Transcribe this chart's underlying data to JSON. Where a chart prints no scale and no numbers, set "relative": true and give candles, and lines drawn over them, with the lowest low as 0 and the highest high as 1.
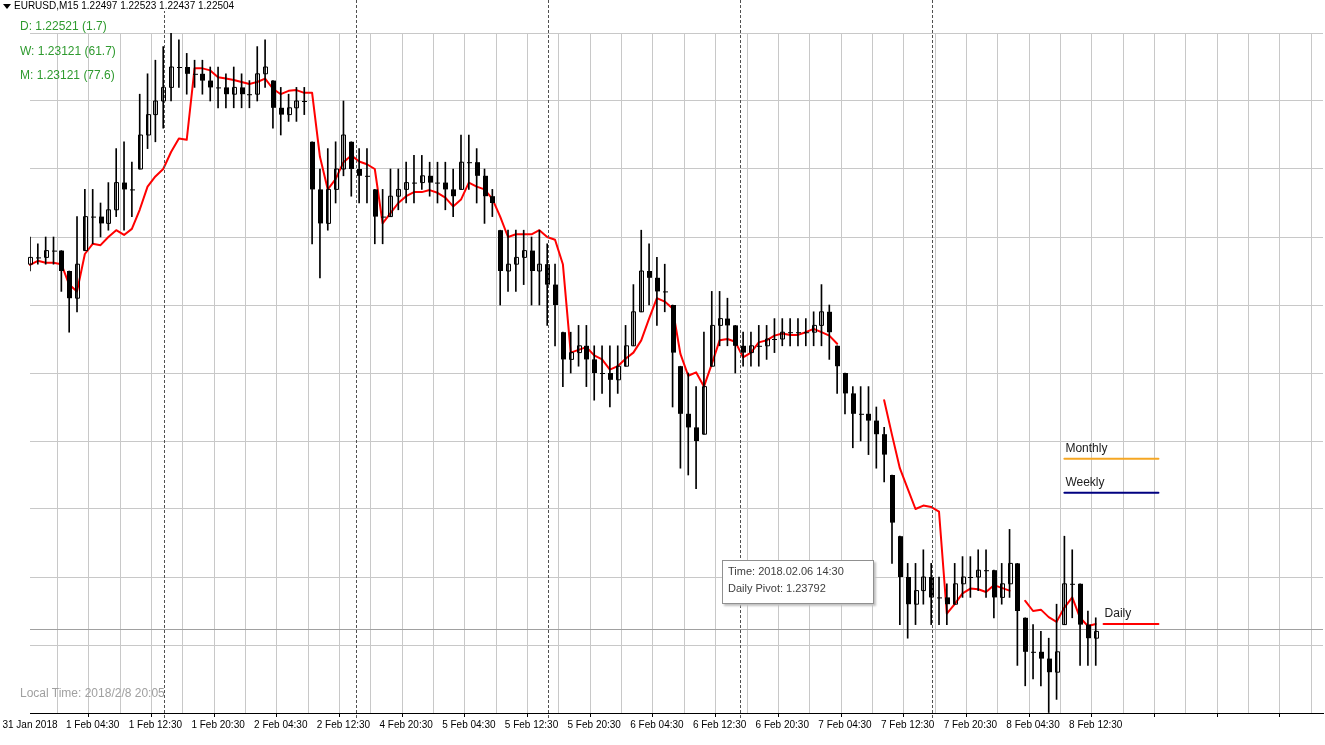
{
  "chart_data": {
    "type": "candlestick",
    "title": "EURUSD,M15  1.22497 1.22523 1.22437 1.22504",
    "relative": true,
    "color": "#000000",
    "grid": true,
    "annotations": [
      "D:  1.22521 (1.7)",
      "W:  1.23121 (61.7)",
      "M:  1.23121 (77.6)",
      "Local Time: 2018/2/8 20:05",
      "Time: 2018.02.06 14:30",
      "Daily Pivot: 1.23792"
    ],
    "categories": [
      "31 Jan 2018",
      null,
      null,
      null,
      null,
      null,
      null,
      null,
      "1 Feb 04:30",
      null,
      null,
      null,
      null,
      null,
      null,
      null,
      "1 Feb 12:30",
      null,
      null,
      null,
      null,
      null,
      null,
      null,
      "1 Feb 20:30",
      null,
      null,
      null,
      null,
      null,
      null,
      null,
      "2 Feb 04:30",
      null,
      null,
      null,
      null,
      null,
      null,
      null,
      "2 Feb 12:30",
      null,
      null,
      null,
      null,
      null,
      null,
      null,
      "4 Feb 20:30",
      null,
      null,
      null,
      null,
      null,
      null,
      null,
      "5 Feb 04:30",
      null,
      null,
      null,
      null,
      null,
      null,
      null,
      "5 Feb 12:30",
      null,
      null,
      null,
      null,
      null,
      null,
      null,
      "5 Feb 20:30",
      null,
      null,
      null,
      null,
      null,
      null,
      null,
      "6 Feb 04:30",
      null,
      null,
      null,
      null,
      null,
      null,
      null,
      "6 Feb 12:30",
      null,
      null,
      null,
      null,
      null,
      null,
      null,
      "6 Feb 20:30",
      null,
      null,
      null,
      null,
      null,
      null,
      null,
      "7 Feb 04:30",
      null,
      null,
      null,
      null,
      null,
      null,
      null,
      "7 Feb 12:30",
      null,
      null,
      null,
      null,
      null,
      null,
      null,
      "7 Feb 20:30",
      null,
      null,
      null,
      null,
      null,
      null,
      null,
      "8 Feb 04:30",
      null,
      null,
      null,
      null,
      null,
      null,
      null,
      "8 Feb 12:30",
      null,
      null,
      null,
      null,
      null,
      null,
      null,
      null,
      null,
      null,
      null,
      null,
      null,
      null,
      null,
      null,
      null,
      null,
      null,
      null,
      null,
      null,
      null,
      null,
      null,
      null,
      null,
      null,
      null
    ],
    "ohlc": [
      [
        0.66,
        0.7,
        0.65,
        0.67
      ],
      [
        0.67,
        0.69,
        0.66,
        0.67
      ],
      [
        0.67,
        0.7,
        0.66,
        0.68
      ],
      [
        0.68,
        0.7,
        0.66,
        0.68
      ],
      [
        0.68,
        0.68,
        0.62,
        0.65
      ],
      [
        0.65,
        0.65,
        0.56,
        0.61
      ],
      [
        0.61,
        0.73,
        0.59,
        0.66
      ],
      [
        0.68,
        0.77,
        0.68,
        0.73
      ],
      [
        0.73,
        0.77,
        0.69,
        0.73
      ],
      [
        0.73,
        0.75,
        0.7,
        0.72
      ],
      [
        0.72,
        0.78,
        0.71,
        0.74
      ],
      [
        0.74,
        0.83,
        0.73,
        0.78
      ],
      [
        0.78,
        0.84,
        0.71,
        0.77
      ],
      [
        0.77,
        0.81,
        0.73,
        0.77
      ],
      [
        0.8,
        0.91,
        0.8,
        0.85
      ],
      [
        0.85,
        0.94,
        0.83,
        0.88
      ],
      [
        0.88,
        0.96,
        0.84,
        0.9
      ],
      [
        0.9,
        0.98,
        0.86,
        0.92
      ],
      [
        0.92,
        1.0,
        0.9,
        0.95
      ],
      [
        0.95,
        0.99,
        0.92,
        0.95
      ],
      [
        0.95,
        0.97,
        0.91,
        0.94
      ],
      [
        0.94,
        0.96,
        0.92,
        0.94
      ],
      [
        0.94,
        0.96,
        0.91,
        0.93
      ],
      [
        0.93,
        0.95,
        0.9,
        0.92
      ],
      [
        0.92,
        0.95,
        0.89,
        0.92
      ],
      [
        0.92,
        0.94,
        0.89,
        0.91
      ],
      [
        0.91,
        0.95,
        0.89,
        0.92
      ],
      [
        0.92,
        0.94,
        0.89,
        0.91
      ],
      [
        0.91,
        0.93,
        0.89,
        0.91
      ],
      [
        0.91,
        0.98,
        0.9,
        0.94
      ],
      [
        0.94,
        0.99,
        0.92,
        0.95
      ],
      [
        0.93,
        0.93,
        0.86,
        0.89
      ],
      [
        0.89,
        0.92,
        0.85,
        0.88
      ],
      [
        0.88,
        0.91,
        0.87,
        0.89
      ],
      [
        0.89,
        0.92,
        0.87,
        0.9
      ],
      [
        0.9,
        0.92,
        0.88,
        0.9
      ],
      [
        0.84,
        0.84,
        0.69,
        0.77
      ],
      [
        0.77,
        0.8,
        0.64,
        0.72
      ],
      [
        0.72,
        0.83,
        0.71,
        0.77
      ],
      [
        0.77,
        0.84,
        0.75,
        0.8
      ],
      [
        0.8,
        0.9,
        0.79,
        0.85
      ],
      [
        0.84,
        0.84,
        0.76,
        0.8
      ],
      [
        0.8,
        0.83,
        0.75,
        0.79
      ],
      [
        0.79,
        0.83,
        0.75,
        0.79
      ],
      [
        0.77,
        0.77,
        0.69,
        0.73
      ],
      [
        0.73,
        0.77,
        0.69,
        0.73
      ],
      [
        0.73,
        0.8,
        0.73,
        0.76
      ],
      [
        0.76,
        0.8,
        0.74,
        0.77
      ],
      [
        0.77,
        0.81,
        0.75,
        0.78
      ],
      [
        0.78,
        0.82,
        0.75,
        0.78
      ],
      [
        0.78,
        0.82,
        0.77,
        0.79
      ],
      [
        0.79,
        0.81,
        0.76,
        0.78
      ],
      [
        0.78,
        0.81,
        0.75,
        0.78
      ],
      [
        0.78,
        0.81,
        0.74,
        0.77
      ],
      [
        0.77,
        0.8,
        0.73,
        0.76
      ],
      [
        0.77,
        0.85,
        0.77,
        0.81
      ],
      [
        0.81,
        0.85,
        0.77,
        0.81
      ],
      [
        0.81,
        0.83,
        0.75,
        0.79
      ],
      [
        0.79,
        0.8,
        0.72,
        0.76
      ],
      [
        0.76,
        0.77,
        0.73,
        0.75
      ],
      [
        0.71,
        0.71,
        0.6,
        0.65
      ],
      [
        0.65,
        0.71,
        0.62,
        0.66
      ],
      [
        0.66,
        0.71,
        0.62,
        0.67
      ],
      [
        0.67,
        0.71,
        0.63,
        0.68
      ],
      [
        0.68,
        0.7,
        0.6,
        0.65
      ],
      [
        0.65,
        0.71,
        0.6,
        0.66
      ],
      [
        0.66,
        0.69,
        0.57,
        0.63
      ],
      [
        0.63,
        0.66,
        0.54,
        0.6
      ],
      [
        0.56,
        0.56,
        0.48,
        0.52
      ],
      [
        0.52,
        0.56,
        0.5,
        0.53
      ],
      [
        0.53,
        0.57,
        0.51,
        0.54
      ],
      [
        0.54,
        0.57,
        0.48,
        0.52
      ],
      [
        0.52,
        0.54,
        0.46,
        0.5
      ],
      [
        0.5,
        0.54,
        0.47,
        0.5
      ],
      [
        0.5,
        0.54,
        0.45,
        0.49
      ],
      [
        0.49,
        0.54,
        0.47,
        0.51
      ],
      [
        0.51,
        0.57,
        0.51,
        0.54
      ],
      [
        0.54,
        0.63,
        0.54,
        0.59
      ],
      [
        0.59,
        0.71,
        0.59,
        0.65
      ],
      [
        0.65,
        0.69,
        0.6,
        0.64
      ],
      [
        0.64,
        0.67,
        0.57,
        0.62
      ],
      [
        0.62,
        0.66,
        0.59,
        0.62
      ],
      [
        0.6,
        0.6,
        0.45,
        0.53
      ],
      [
        0.51,
        0.51,
        0.36,
        0.44
      ],
      [
        0.44,
        0.5,
        0.35,
        0.42
      ],
      [
        0.42,
        0.48,
        0.33,
        0.4
      ],
      [
        0.41,
        0.56,
        0.41,
        0.48
      ],
      [
        0.51,
        0.62,
        0.51,
        0.57
      ],
      [
        0.57,
        0.62,
        0.54,
        0.58
      ],
      [
        0.58,
        0.61,
        0.54,
        0.57
      ],
      [
        0.57,
        0.57,
        0.5,
        0.54
      ],
      [
        0.54,
        0.56,
        0.51,
        0.53
      ],
      [
        0.53,
        0.56,
        0.51,
        0.54
      ],
      [
        0.54,
        0.57,
        0.51,
        0.54
      ],
      [
        0.54,
        0.57,
        0.52,
        0.55
      ],
      [
        0.55,
        0.58,
        0.53,
        0.55
      ],
      [
        0.55,
        0.58,
        0.54,
        0.56
      ],
      [
        0.56,
        0.58,
        0.54,
        0.56
      ],
      [
        0.56,
        0.58,
        0.54,
        0.56
      ],
      [
        0.56,
        0.58,
        0.54,
        0.56
      ],
      [
        0.56,
        0.59,
        0.54,
        0.57
      ],
      [
        0.57,
        0.63,
        0.54,
        0.59
      ],
      [
        0.59,
        0.6,
        0.52,
        0.56
      ],
      [
        0.54,
        0.54,
        0.47,
        0.51
      ],
      [
        0.5,
        0.5,
        0.44,
        0.47
      ],
      [
        0.47,
        0.48,
        0.39,
        0.44
      ],
      [
        0.44,
        0.48,
        0.4,
        0.44
      ],
      [
        0.44,
        0.48,
        0.38,
        0.43
      ],
      [
        0.43,
        0.45,
        0.36,
        0.41
      ],
      [
        0.41,
        0.42,
        0.34,
        0.38
      ],
      [
        0.35,
        0.35,
        0.22,
        0.28
      ],
      [
        0.26,
        0.26,
        0.13,
        0.2
      ],
      [
        0.2,
        0.22,
        0.11,
        0.16
      ],
      [
        0.16,
        0.22,
        0.13,
        0.18
      ],
      [
        0.18,
        0.24,
        0.16,
        0.2
      ],
      [
        0.2,
        0.22,
        0.13,
        0.17
      ],
      [
        0.17,
        0.2,
        0.13,
        0.17
      ],
      [
        0.17,
        0.19,
        0.13,
        0.16
      ],
      [
        0.16,
        0.22,
        0.16,
        0.19
      ],
      [
        0.19,
        0.23,
        0.17,
        0.2
      ],
      [
        0.2,
        0.23,
        0.17,
        0.2
      ],
      [
        0.2,
        0.24,
        0.18,
        0.21
      ],
      [
        0.21,
        0.24,
        0.17,
        0.21
      ],
      [
        0.21,
        0.21,
        0.14,
        0.17
      ],
      [
        0.17,
        0.22,
        0.16,
        0.19
      ],
      [
        0.19,
        0.27,
        0.17,
        0.22
      ],
      [
        0.22,
        0.22,
        0.07,
        0.15
      ],
      [
        0.14,
        0.14,
        0.04,
        0.09
      ],
      [
        0.09,
        0.13,
        0.05,
        0.09
      ],
      [
        0.09,
        0.12,
        0.04,
        0.08
      ],
      [
        0.08,
        0.11,
        0.0,
        0.06
      ],
      [
        0.06,
        0.16,
        0.02,
        0.09
      ],
      [
        0.13,
        0.26,
        0.13,
        0.19
      ],
      [
        0.19,
        0.24,
        0.14,
        0.19
      ],
      [
        0.19,
        0.19,
        0.07,
        0.13
      ],
      [
        0.13,
        0.15,
        0.07,
        0.11
      ],
      [
        0.11,
        0.14,
        0.07,
        0.12
      ],
      null,
      null,
      null,
      null,
      null,
      null,
      null,
      null,
      null,
      null,
      null,
      null,
      null,
      null,
      null,
      null,
      null,
      null,
      null,
      null,
      null,
      null,
      null,
      null,
      null,
      null,
      null,
      null,
      null
    ],
    "series": [
      {
        "type": "line",
        "color": "#ff0000",
        "values": [
          0.659,
          0.665,
          0.662,
          0.662,
          0.66,
          0.63,
          0.62,
          0.675,
          0.69,
          0.688,
          0.7,
          0.71,
          0.703,
          0.712,
          0.74,
          0.774,
          0.789,
          0.8,
          0.825,
          0.845,
          0.843,
          0.948,
          0.948,
          0.945,
          0.935,
          0.933,
          0.931,
          0.928,
          0.925,
          0.928,
          0.933,
          0.918,
          0.91,
          0.915,
          0.916,
          0.912,
          0.912,
          0.818,
          0.77,
          0.785,
          0.81,
          0.82,
          0.811,
          0.807,
          0.8,
          0.72,
          0.735,
          0.75,
          0.76,
          0.766,
          0.766,
          0.769,
          0.765,
          0.758,
          0.745,
          0.755,
          0.78,
          0.774,
          0.77,
          0.756,
          0.73,
          0.7,
          0.704,
          0.704,
          0.704,
          0.71,
          0.7,
          0.696,
          0.66,
          0.53,
          0.534,
          0.538,
          0.526,
          0.52,
          0.505,
          0.51,
          0.521,
          0.53,
          0.548,
          0.58,
          0.61,
          0.605,
          0.595,
          0.528,
          0.496,
          0.501,
          0.48,
          0.513,
          0.548,
          0.55,
          0.546,
          0.523,
          0.53,
          0.545,
          0.548,
          0.555,
          0.558,
          0.556,
          0.556,
          0.56,
          0.565,
          0.56,
          0.555,
          0.543,
          null,
          null,
          null,
          null,
          null,
          0.46,
          0.409,
          0.36,
          0.33,
          0.3,
          0.305,
          0.303,
          0.296,
          0.146,
          0.16,
          0.176,
          0.183,
          0.182,
          0.178,
          0.188,
          0.184,
          0.18,
          null,
          0.165,
          0.15,
          0.152,
          0.141,
          0.134,
          0.155,
          0.17,
          0.14,
          0.128,
          0.131,
          null,
          null,
          null,
          null,
          null,
          null,
          null,
          null,
          null,
          null,
          null,
          null,
          null,
          null,
          null,
          null,
          null,
          null,
          null,
          null,
          null,
          null,
          null,
          null,
          null,
          null,
          null,
          null,
          null
        ]
      },
      {
        "type": "line",
        "name": "Monthly",
        "color": "#f5a623",
        "values": [
          null,
          null,
          null,
          null,
          null,
          null,
          null,
          null,
          null,
          null,
          null,
          null,
          null,
          null,
          null,
          null,
          null,
          null,
          null,
          null,
          null,
          null,
          null,
          null,
          null,
          null,
          null,
          null,
          null,
          null,
          null,
          null,
          null,
          null,
          null,
          null,
          null,
          null,
          null,
          null,
          null,
          null,
          null,
          null,
          null,
          null,
          null,
          null,
          null,
          null,
          null,
          null,
          null,
          null,
          null,
          null,
          null,
          null,
          null,
          null,
          null,
          null,
          null,
          null,
          null,
          null,
          null,
          null,
          null,
          null,
          null,
          null,
          null,
          null,
          null,
          null,
          null,
          null,
          null,
          null,
          null,
          null,
          null,
          null,
          null,
          null,
          null,
          null,
          null,
          null,
          null,
          null,
          null,
          null,
          null,
          null,
          null,
          null,
          null,
          null,
          null,
          null,
          null,
          null,
          null,
          null,
          null,
          null,
          null,
          null,
          null,
          null,
          null,
          null,
          null,
          null,
          null,
          null,
          null,
          null,
          null,
          null,
          null,
          null,
          null,
          null,
          null,
          null,
          null,
          null,
          null,
          null,
          0.374,
          0.374,
          0.374,
          0.374,
          0.374,
          0.374,
          0.374,
          0.374,
          0.374,
          0.374,
          0.374,
          0.374,
          0.374,
          null,
          null,
          null,
          null,
          null,
          null,
          null,
          null,
          null,
          null,
          null,
          null,
          null,
          null,
          null,
          null,
          null,
          null,
          null,
          null,
          null
        ]
      },
      {
        "type": "line",
        "name": "Weekly",
        "color": "#000080",
        "values": [
          null,
          null,
          null,
          null,
          null,
          null,
          null,
          null,
          null,
          null,
          null,
          null,
          null,
          null,
          null,
          null,
          null,
          null,
          null,
          null,
          null,
          null,
          null,
          null,
          null,
          null,
          null,
          null,
          null,
          null,
          null,
          null,
          null,
          null,
          null,
          null,
          null,
          null,
          null,
          null,
          null,
          null,
          null,
          null,
          null,
          null,
          null,
          null,
          null,
          null,
          null,
          null,
          null,
          null,
          null,
          null,
          null,
          null,
          null,
          null,
          null,
          null,
          null,
          null,
          null,
          null,
          null,
          null,
          null,
          null,
          null,
          null,
          null,
          null,
          null,
          null,
          null,
          null,
          null,
          null,
          null,
          null,
          null,
          null,
          null,
          null,
          null,
          null,
          null,
          null,
          null,
          null,
          null,
          null,
          null,
          null,
          null,
          null,
          null,
          null,
          null,
          null,
          null,
          null,
          null,
          null,
          null,
          null,
          null,
          null,
          null,
          null,
          null,
          null,
          null,
          null,
          null,
          null,
          null,
          null,
          null,
          null,
          null,
          null,
          null,
          null,
          null,
          null,
          null,
          null,
          null,
          null,
          0.324,
          0.324,
          0.324,
          0.324,
          0.324,
          0.324,
          0.324,
          0.324,
          0.324,
          0.324,
          0.324,
          0.324,
          0.324,
          null,
          null,
          null,
          null,
          null,
          null,
          null,
          null,
          null,
          null,
          null,
          null,
          null,
          null,
          null,
          null,
          null,
          null,
          null,
          null,
          null
        ]
      },
      {
        "type": "line",
        "name": "Daily",
        "color": "#ff0000",
        "values": [
          null,
          null,
          null,
          null,
          null,
          null,
          null,
          null,
          null,
          null,
          null,
          null,
          null,
          null,
          null,
          null,
          null,
          null,
          null,
          null,
          null,
          null,
          null,
          null,
          null,
          null,
          null,
          null,
          null,
          null,
          null,
          null,
          null,
          null,
          null,
          null,
          null,
          null,
          null,
          null,
          null,
          null,
          null,
          null,
          null,
          null,
          null,
          null,
          null,
          null,
          null,
          null,
          null,
          null,
          null,
          null,
          null,
          null,
          null,
          null,
          null,
          null,
          null,
          null,
          null,
          null,
          null,
          null,
          null,
          null,
          null,
          null,
          null,
          null,
          null,
          null,
          null,
          null,
          null,
          null,
          null,
          null,
          null,
          null,
          null,
          null,
          null,
          null,
          null,
          null,
          null,
          null,
          null,
          null,
          null,
          null,
          null,
          null,
          null,
          null,
          null,
          null,
          null,
          null,
          null,
          null,
          null,
          null,
          null,
          null,
          null,
          null,
          null,
          null,
          null,
          null,
          null,
          null,
          null,
          null,
          null,
          null,
          null,
          null,
          null,
          null,
          null,
          null,
          null,
          null,
          null,
          null,
          null,
          null,
          null,
          null,
          null,
          0.131,
          0.131,
          0.131,
          0.131,
          0.131,
          0.131,
          0.131,
          0.131,
          null,
          null,
          null,
          null,
          null,
          null,
          null,
          null,
          null,
          null,
          null,
          null,
          null,
          null,
          null,
          null,
          null,
          null,
          null,
          null,
          null
        ]
      }
    ],
    "ref_lines": [
      {
        "axis": "y",
        "value": 0.124,
        "color": "#a0a0a0"
      }
    ]
  }
}
